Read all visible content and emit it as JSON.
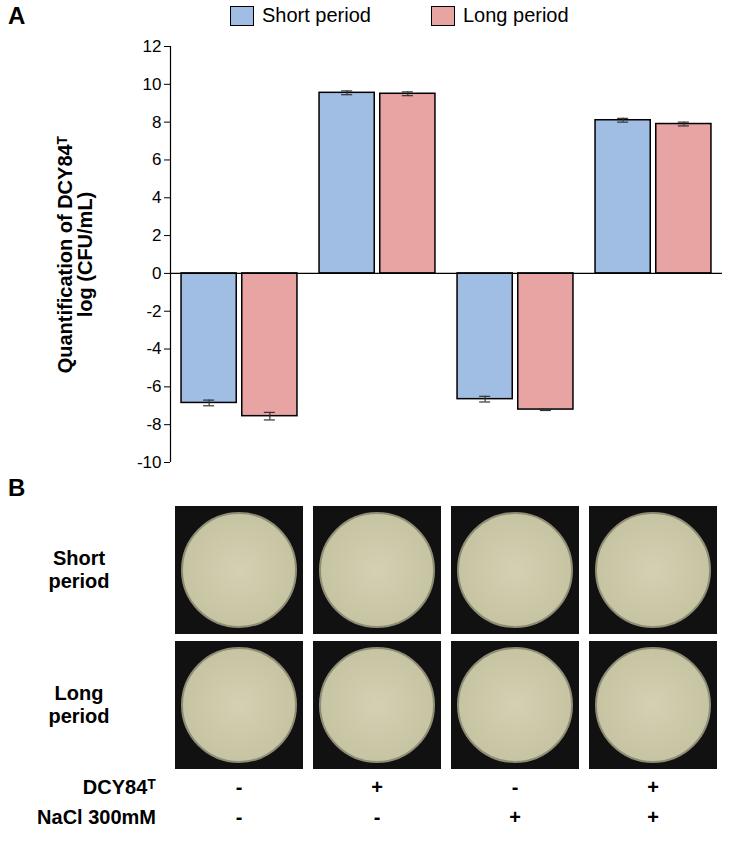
{
  "chart_data": {
    "type": "bar",
    "label": "A",
    "ylabel": "Quantification of DCY84ᵀ\nlog (CFU/mL)",
    "categories": [
      null,
      null,
      null,
      null
    ],
    "series": [
      {
        "name": "Short period",
        "color": "#a0bde3",
        "values": [
          -6.85,
          9.55,
          -6.65,
          8.1
        ],
        "errors": [
          0.15,
          0.1,
          0.15,
          0.1
        ]
      },
      {
        "name": "Long period",
        "color": "#e8a3a3",
        "values": [
          -7.55,
          9.5,
          -7.2,
          7.9
        ],
        "errors": [
          0.2,
          0.1,
          0.05,
          0.1
        ]
      }
    ],
    "ylim": [
      -10,
      12
    ],
    "yticks": [
      -10,
      -8,
      -6,
      -4,
      -2,
      0,
      2,
      4,
      6,
      8,
      10,
      12
    ],
    "legend": "top",
    "grid": false
  },
  "panel_b": {
    "label": "B",
    "rows": [
      "Short period",
      "Long period"
    ],
    "conditions": [
      {
        "name": "DCY84ᵀ",
        "values": [
          "-",
          "+",
          "-",
          "+"
        ]
      },
      {
        "name": "NaCl 300mM",
        "values": [
          "-",
          "-",
          "+",
          "+"
        ]
      }
    ]
  }
}
